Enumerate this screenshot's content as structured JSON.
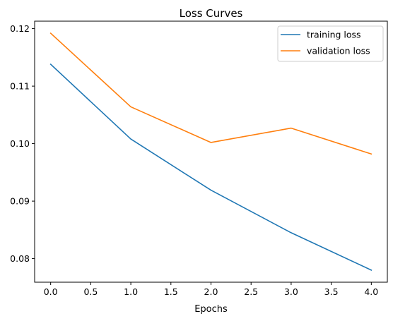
{
  "chart_data": {
    "type": "line",
    "title": "Loss Curves",
    "xlabel": "Epochs",
    "ylabel": "",
    "x": [
      0,
      1,
      2,
      3,
      4
    ],
    "series": [
      {
        "name": "training loss",
        "color": "#1f77b4",
        "values": [
          0.1138,
          0.1008,
          0.0919,
          0.0845,
          0.078
        ]
      },
      {
        "name": "validation loss",
        "color": "#ff7f0e",
        "values": [
          0.1192,
          0.1064,
          0.1002,
          0.1027,
          0.0982
        ]
      }
    ],
    "xlim": [
      -0.2,
      4.2
    ],
    "ylim": [
      0.0759,
      0.1213
    ],
    "xticks": [
      0.0,
      0.5,
      1.0,
      1.5,
      2.0,
      2.5,
      3.0,
      3.5,
      4.0
    ],
    "xtick_labels": [
      "0.0",
      "0.5",
      "1.0",
      "1.5",
      "2.0",
      "2.5",
      "3.0",
      "3.5",
      "4.0"
    ],
    "yticks": [
      0.08,
      0.09,
      0.1,
      0.11,
      0.12
    ],
    "ytick_labels": [
      "0.08",
      "0.09",
      "0.10",
      "0.11",
      "0.12"
    ],
    "grid": false,
    "legend_position": "top-right"
  }
}
